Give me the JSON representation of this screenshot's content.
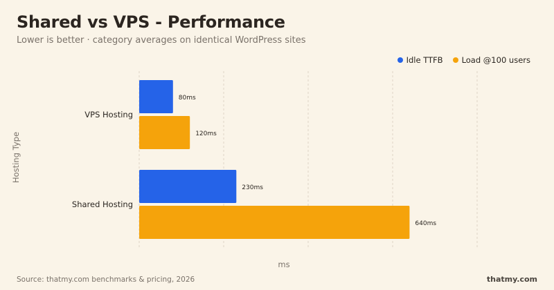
{
  "header": {
    "title": "Shared vs VPS - Performance",
    "subtitle": "Lower is better · category averages on identical WordPress sites"
  },
  "colors": {
    "idle": "#2563e8",
    "load": "#f5a30b",
    "grid": "#ddd4c6",
    "background": "#faf4e8"
  },
  "footer": {
    "source": "Source: thatmy.com benchmarks & pricing, 2026",
    "brand": "thatmy.com"
  },
  "chart_data": {
    "type": "bar",
    "orientation": "horizontal",
    "categories": [
      "VPS Hosting",
      "Shared Hosting"
    ],
    "series": [
      {
        "name": "Idle TTFB",
        "values": [
          80,
          230
        ],
        "labels": [
          "80ms",
          "230ms"
        ],
        "color": "#2563e8"
      },
      {
        "name": "Load @100 users",
        "values": [
          120,
          640
        ],
        "labels": [
          "120ms",
          "640ms"
        ],
        "color": "#f5a30b"
      }
    ],
    "xlabel": "ms",
    "ylabel": "Hosting Type",
    "xlim": [
      0,
      800
    ],
    "grid": true,
    "legend_position": "top-right"
  }
}
